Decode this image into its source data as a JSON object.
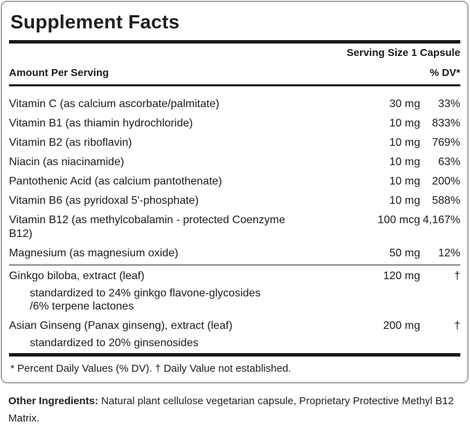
{
  "panel": {
    "title": "Supplement Facts",
    "serving_size": "Serving Size 1 Capsule",
    "columns": {
      "amount_header": "Amount Per Serving",
      "dv_header": "% DV*"
    },
    "nutrients": [
      {
        "name": "Vitamin C (as calcium ascorbate/palmitate)",
        "amount": "30 mg",
        "dv": "33%"
      },
      {
        "name": "Vitamin B1 (as thiamin hydrochloride)",
        "amount": "10 mg",
        "dv": "833%"
      },
      {
        "name": "Vitamin B2 (as riboflavin)",
        "amount": "10 mg",
        "dv": "769%"
      },
      {
        "name": "Niacin (as niacinamide)",
        "amount": "10 mg",
        "dv": "63%"
      },
      {
        "name": "Pantothenic Acid (as calcium pantothenate)",
        "amount": "10 mg",
        "dv": "200%"
      },
      {
        "name": "Vitamin B6 (as pyridoxal 5'-phosphate)",
        "amount": "10 mg",
        "dv": "588%"
      },
      {
        "name": "Vitamin B12 (as methylcobalamin - protected Coenzyme B12)",
        "amount": "100 mcg",
        "dv": "4,167%"
      },
      {
        "name": "Magnesium (as magnesium oxide)",
        "amount": "50 mg",
        "dv": "12%"
      }
    ],
    "botanicals": [
      {
        "name": "Ginkgo biloba, extract (leaf)",
        "amount": "120 mg",
        "dv": "†",
        "details": [
          "standardized to 24% ginkgo flavone-glycosides",
          "/6% terpene lactones"
        ]
      },
      {
        "name": "Asian Ginseng (Panax ginseng), extract (leaf)",
        "amount": "200 mg",
        "dv": "†",
        "details": [
          "standardized to 20% ginsenosides"
        ]
      }
    ],
    "footnote": "* Percent Daily Values (% DV). † Daily Value not established."
  },
  "other_ingredients": {
    "label": "Other Ingredients:",
    "text": " Natural plant cellulose vegetarian capsule, Proprietary Protective Methyl B12 Matrix."
  },
  "colors": {
    "rule": "#1a1a1a",
    "panel_border": "#a9a9a9",
    "text": "#1b1b1b"
  }
}
